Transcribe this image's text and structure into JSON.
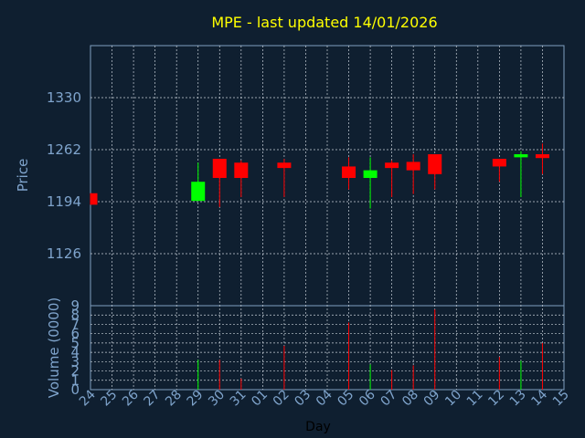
{
  "chart_data": {
    "type": "candlestick",
    "title": "MPE - last updated 14/01/2026",
    "xlabel": "Day",
    "price_panel": {
      "ylabel": "Price",
      "ylim": [
        1058,
        1398
      ],
      "yticks": [
        1126,
        1194,
        1262,
        1330
      ],
      "grid": true
    },
    "volume_panel": {
      "ylabel": "Volume (0000)",
      "ylim": [
        0,
        9
      ],
      "yticks": [
        0,
        1,
        2,
        3,
        4,
        5,
        6,
        7,
        8,
        9
      ],
      "grid": true
    },
    "categories": [
      "24",
      "25",
      "26",
      "27",
      "28",
      "29",
      "30",
      "31",
      "01",
      "02",
      "03",
      "04",
      "05",
      "06",
      "07",
      "08",
      "09",
      "10",
      "11",
      "12",
      "13",
      "14",
      "15"
    ],
    "candles": [
      {
        "x": "24",
        "open": 1205,
        "close": 1190,
        "high": 1205,
        "low": 1190,
        "volume": 0.0
      },
      {
        "x": "29",
        "open": 1195,
        "close": 1220,
        "high": 1245,
        "low": 1195,
        "volume": 3.2
      },
      {
        "x": "30",
        "open": 1250,
        "close": 1225,
        "high": 1250,
        "low": 1187,
        "volume": 3.2
      },
      {
        "x": "31",
        "open": 1245,
        "close": 1225,
        "high": 1248,
        "low": 1200,
        "volume": 1.2
      },
      {
        "x": "02",
        "open": 1245,
        "close": 1238,
        "high": 1250,
        "low": 1200,
        "volume": 4.7
      },
      {
        "x": "05",
        "open": 1240,
        "close": 1225,
        "high": 1252,
        "low": 1210,
        "volume": 7.2
      },
      {
        "x": "06",
        "open": 1225,
        "close": 1235,
        "high": 1252,
        "low": 1185,
        "volume": 2.7
      },
      {
        "x": "07",
        "open": 1245,
        "close": 1238,
        "high": 1248,
        "low": 1200,
        "volume": 2.1
      },
      {
        "x": "08",
        "open": 1246,
        "close": 1235,
        "high": 1256,
        "low": 1204,
        "volume": 2.6
      },
      {
        "x": "09",
        "open": 1256,
        "close": 1230,
        "high": 1256,
        "low": 1210,
        "volume": 8.6
      },
      {
        "x": "12",
        "open": 1250,
        "close": 1240,
        "high": 1250,
        "low": 1220,
        "volume": 3.5
      },
      {
        "x": "13",
        "open": 1252,
        "close": 1256,
        "high": 1260,
        "low": 1200,
        "volume": 3.1
      },
      {
        "x": "14",
        "open": 1256,
        "close": 1251,
        "high": 1270,
        "low": 1230,
        "volume": 5.0
      }
    ],
    "colors": {
      "up": "#00ff00",
      "down": "#ff0000",
      "background": "#0f1f30",
      "axis": "#7f9fbf",
      "grid": "#c8d0d8",
      "title": "#ffff00",
      "label": "#7fa4cc"
    }
  }
}
